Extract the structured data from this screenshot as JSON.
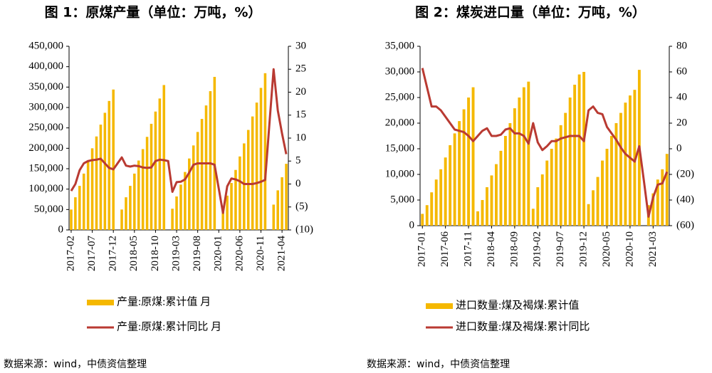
{
  "chart_data": [
    {
      "type": "combo",
      "title": "图 1：原煤产量（单位：万吨，%）",
      "categories": [
        "2017-02",
        null,
        null,
        null,
        null,
        "2017-07",
        null,
        null,
        null,
        null,
        "2017-12",
        null,
        null,
        null,
        null,
        "2018-05",
        null,
        null,
        null,
        null,
        "2018-10",
        null,
        null,
        null,
        null,
        "2019-03",
        null,
        null,
        null,
        null,
        "2019-08",
        null,
        null,
        null,
        null,
        "2020-01",
        null,
        null,
        null,
        null,
        "2020-06",
        null,
        null,
        null,
        null,
        "2020-11",
        null,
        null,
        null,
        null,
        "2021-04",
        null
      ],
      "series": [
        {
          "name": "产量:原煤:累计值 月",
          "kind": "bar",
          "color": "#f5b800",
          "values": [
            50000,
            80000,
            108000,
            138000,
            170000,
            200000,
            229000,
            258000,
            287000,
            316000,
            344000,
            null,
            50000,
            80000,
            108000,
            138000,
            170000,
            198000,
            228000,
            260000,
            290000,
            322000,
            355000,
            null,
            52000,
            82000,
            111000,
            142000,
            175000,
            207000,
            240000,
            272000,
            305000,
            340000,
            375000,
            null,
            54000,
            84000,
            115000,
            147000,
            180000,
            212000,
            245000,
            278000,
            312000,
            348000,
            384000,
            null,
            62000,
            97000,
            129000,
            162000
          ]
        },
        {
          "name": "产量:原煤:累计同比 月",
          "kind": "line",
          "axis": "y2",
          "color": "#b93a32",
          "values": [
            -1.5,
            0,
            3,
            4.5,
            5,
            5.2,
            5.3,
            5.5,
            4.5,
            3.5,
            3.2,
            4.5,
            5.8,
            4,
            3.8,
            4,
            3.9,
            3.6,
            3.5,
            3.6,
            5,
            5.3,
            5.2,
            5,
            -1.7,
            0.4,
            0.5,
            1,
            2.5,
            4.2,
            4.5,
            4.5,
            4.5,
            4.5,
            4.2,
            -1,
            -6.3,
            -0.5,
            1.2,
            1,
            0.6,
            0,
            0,
            0,
            0.2,
            0.5,
            0.9,
            13,
            25,
            16,
            11,
            6.5
          ]
        }
      ],
      "ylim": [
        0,
        450000
      ],
      "yticks": [
        0,
        {
          "value": 50000,
          "label": "50,000"
        },
        {
          "value": 100000,
          "label": "100,000"
        },
        {
          "value": 150000,
          "label": "150,000"
        },
        {
          "value": 200000,
          "label": "200,000"
        },
        {
          "value": 250000,
          "label": "250,000"
        },
        {
          "value": 300000,
          "label": "300,000"
        },
        {
          "value": 350000,
          "label": "350,000"
        },
        {
          "value": 400000,
          "label": "400,000"
        },
        {
          "value": 450000,
          "label": "450,000"
        }
      ],
      "y2lim": [
        -10,
        30
      ],
      "y2ticks": [
        {
          "value": -10,
          "label": "(10)"
        },
        {
          "value": -5,
          "label": "(5)"
        },
        0,
        5,
        10,
        15,
        20,
        25,
        30
      ],
      "negative_tick_color": "#e00000",
      "source": "数据来源：wind，中债资信整理"
    },
    {
      "type": "combo",
      "title": "图 2：煤炭进口量（单位：万吨，%）",
      "categories": [
        "2017-01",
        null,
        null,
        null,
        null,
        "2017-06",
        null,
        null,
        null,
        null,
        "2017-11",
        null,
        null,
        null,
        null,
        "2018-04",
        null,
        null,
        null,
        null,
        "2018-09",
        null,
        null,
        null,
        null,
        "2019-02",
        null,
        null,
        null,
        null,
        "2019-07",
        null,
        null,
        null,
        null,
        "2019-12",
        null,
        null,
        null,
        null,
        "2020-05",
        null,
        null,
        null,
        null,
        "2020-10",
        null,
        null,
        null,
        null,
        "2021-03",
        null,
        null,
        null
      ],
      "series": [
        {
          "name": "进口数量:煤及褐煤:累计值",
          "kind": "bar",
          "color": "#f5b800",
          "values": [
            2300,
            4000,
            6500,
            9000,
            11000,
            13300,
            15700,
            18000,
            20400,
            22700,
            25000,
            27000,
            2800,
            5000,
            7500,
            9800,
            12000,
            14600,
            17500,
            20000,
            22900,
            25000,
            27000,
            28100,
            3300,
            7500,
            10000,
            12700,
            15000,
            17000,
            19600,
            22000,
            25000,
            27500,
            29500,
            30000,
            4200,
            6900,
            9500,
            12700,
            15000,
            17500,
            20000,
            22000,
            24000,
            25400,
            26500,
            30400,
            null,
            4000,
            6300,
            9000,
            11000,
            14000
          ]
        },
        {
          "name": "进口数量:煤及褐煤:累计同比",
          "kind": "line",
          "axis": "y2",
          "color": "#b93a32",
          "values": [
            63,
            48,
            33,
            33,
            30,
            25,
            20,
            15,
            14,
            13,
            10,
            6,
            10,
            14,
            16,
            10,
            10,
            11,
            15,
            16,
            12,
            12,
            10,
            4,
            20,
            5,
            -1,
            2,
            6,
            6,
            8,
            9,
            10,
            10,
            10,
            6,
            30,
            33,
            28,
            27,
            17,
            12,
            7,
            1,
            -4,
            -7,
            -10,
            2,
            -25,
            -53,
            -38,
            -28,
            -27,
            -18
          ]
        }
      ],
      "ylim": [
        0,
        35000
      ],
      "yticks": [
        0,
        {
          "value": 5000,
          "label": "5,000"
        },
        {
          "value": 10000,
          "label": "10,000"
        },
        {
          "value": 15000,
          "label": "15,000"
        },
        {
          "value": 20000,
          "label": "20,000"
        },
        {
          "value": 25000,
          "label": "25,000"
        },
        {
          "value": 30000,
          "label": "30,000"
        },
        {
          "value": 35000,
          "label": "35,000"
        }
      ],
      "y2lim": [
        -60,
        80
      ],
      "y2ticks": [
        {
          "value": -60,
          "label": "(60)"
        },
        {
          "value": -40,
          "label": "(40)"
        },
        {
          "value": -20,
          "label": "(20)"
        },
        0,
        20,
        40,
        60,
        80
      ],
      "negative_tick_color": "#e00000",
      "source": "数据来源：wind，中债资信整理"
    }
  ]
}
